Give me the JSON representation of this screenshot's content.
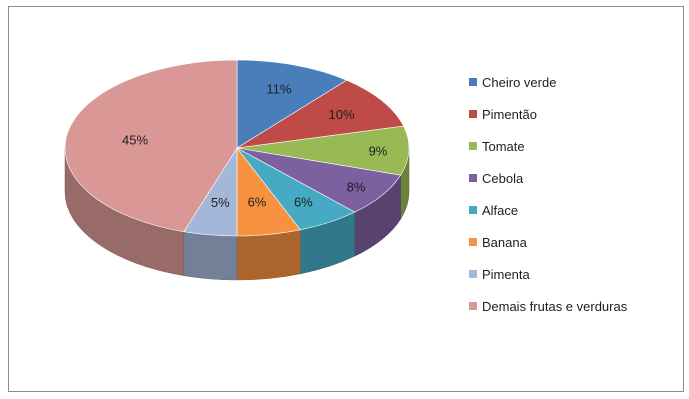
{
  "chart_data": {
    "type": "pie",
    "style": "3d",
    "legend_position": "right",
    "slices": [
      {
        "label": "Cheiro verde",
        "value": 11,
        "display": "11%",
        "color": "#4a7ebb"
      },
      {
        "label": "Pimentão",
        "value": 10,
        "display": "10%",
        "color": "#be4b48"
      },
      {
        "label": "Tomate",
        "value": 9,
        "display": "9%",
        "color": "#98b954"
      },
      {
        "label": "Cebola",
        "value": 8,
        "display": "8%",
        "color": "#7d60a0"
      },
      {
        "label": "Alface",
        "value": 6,
        "display": "6%",
        "color": "#46aac5"
      },
      {
        "label": "Banana",
        "value": 6,
        "display": "6%",
        "color": "#f69240"
      },
      {
        "label": "Pimenta",
        "value": 5,
        "display": "5%",
        "color": "#a3b7d9"
      },
      {
        "label": "Demais frutas e verduras",
        "value": 45,
        "display": "45%",
        "color": "#d99795"
      }
    ]
  }
}
